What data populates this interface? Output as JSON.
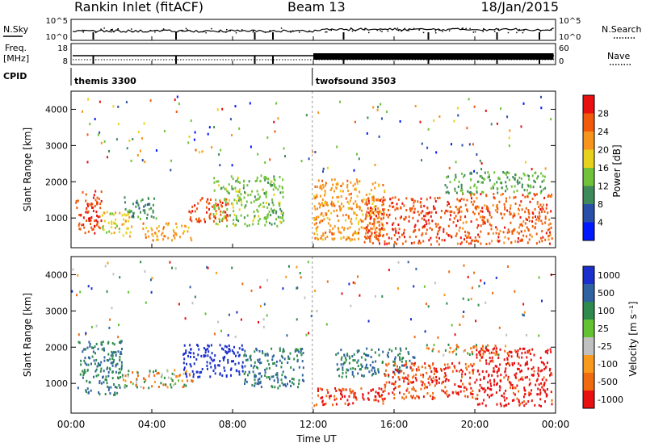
{
  "header": {
    "title": "Rankin Inlet (fitACF)",
    "beam": "Beam 13",
    "date": "18/Jan/2015"
  },
  "status_panel": {
    "left_label": "N.Sky",
    "left_ticks": [
      "10^5",
      "10^0"
    ],
    "right_label": "N.Search",
    "right_ticks": [
      "10^5",
      "10^0"
    ]
  },
  "freq_panel": {
    "label_line1": "Freq.",
    "label_line2": "[MHz]",
    "left_ticks": [
      "18",
      "8"
    ],
    "right_ticks": [
      "60",
      "0"
    ],
    "right_label": "Nave"
  },
  "cpid": {
    "label": "CPID",
    "segments": [
      {
        "name": "themis 3300",
        "start_hour": 0,
        "end_hour": 11.95
      },
      {
        "name": "twofsound 3503",
        "start_hour": 11.95,
        "end_hour": 24
      }
    ]
  },
  "colors": {
    "power": [
      "#0019ff",
      "#2a4fa8",
      "#3f8a5a",
      "#6fc23a",
      "#e6d21a",
      "#f7941d",
      "#f05a0a",
      "#e81010"
    ],
    "velocity": [
      "#1a2fcc",
      "#2f62a0",
      "#2e8a4d",
      "#62c232",
      "#c0c0c0",
      "#f79a1d",
      "#f06a10",
      "#e81010"
    ]
  },
  "chart_data": [
    {
      "type": "heatmap",
      "name": "power-panel",
      "title": "",
      "xlabel": "Time UT",
      "ylabel": "Slant Range [km]",
      "xlim": [
        0,
        24
      ],
      "ylim": [
        180,
        4500
      ],
      "x_ticks": [
        "00:00",
        "04:00",
        "08:00",
        "12:00",
        "16:00",
        "20:00",
        "00:00"
      ],
      "y_ticks": [
        1000,
        2000,
        3000,
        4000
      ],
      "colorbar": {
        "label": "Power [dB]",
        "range": [
          0,
          32
        ],
        "ticks": [
          4,
          8,
          12,
          16,
          20,
          24,
          28
        ]
      },
      "regions": [
        {
          "t0": 0.2,
          "t1": 1.5,
          "r0": 600,
          "r1": 1800,
          "level": 28
        },
        {
          "t0": 1.5,
          "t1": 3.0,
          "r0": 500,
          "r1": 1200,
          "level": 18
        },
        {
          "t0": 2.6,
          "t1": 4.2,
          "r0": 1000,
          "r1": 1600,
          "level": 10
        },
        {
          "t0": 3.5,
          "t1": 6.0,
          "r0": 400,
          "r1": 900,
          "level": 22
        },
        {
          "t0": 5.8,
          "t1": 7.8,
          "r0": 900,
          "r1": 1600,
          "level": 27
        },
        {
          "t0": 7.0,
          "t1": 10.5,
          "r0": 800,
          "r1": 2200,
          "level": 14
        },
        {
          "t0": 12.0,
          "t1": 15.5,
          "r0": 400,
          "r1": 2100,
          "level": 22
        },
        {
          "t0": 14.5,
          "t1": 19.0,
          "r0": 300,
          "r1": 1600,
          "level": 27
        },
        {
          "t0": 19.0,
          "t1": 23.8,
          "r0": 300,
          "r1": 1700,
          "level": 26
        },
        {
          "t0": 18.5,
          "t1": 23.5,
          "r0": 1700,
          "r1": 2300,
          "level": 12
        }
      ]
    },
    {
      "type": "heatmap",
      "name": "velocity-panel",
      "title": "",
      "xlabel": "Time UT",
      "ylabel": "Slant Range [km]",
      "xlim": [
        0,
        24
      ],
      "ylim": [
        180,
        4500
      ],
      "x_ticks": [
        "00:00",
        "04:00",
        "08:00",
        "12:00",
        "16:00",
        "20:00",
        "00:00"
      ],
      "y_ticks": [
        1000,
        2000,
        3000,
        4000
      ],
      "colorbar": {
        "label": "Velocity [m s⁻¹]",
        "range": [
          -1000,
          1000
        ],
        "ticks": [
          "1000",
          "500",
          "100",
          "25",
          "-25",
          "-100",
          "-500",
          "-1000"
        ]
      },
      "regions": [
        {
          "t0": 0.3,
          "t1": 2.5,
          "r0": 700,
          "r1": 2200,
          "level": 250
        },
        {
          "t0": 2.5,
          "t1": 6.0,
          "r0": 900,
          "r1": 1400,
          "level": 0
        },
        {
          "t0": 5.5,
          "t1": 8.5,
          "r0": 1200,
          "r1": 2100,
          "level": 700
        },
        {
          "t0": 8.5,
          "t1": 11.5,
          "r0": 900,
          "r1": 2000,
          "level": 250
        },
        {
          "t0": 12.0,
          "t1": 15.5,
          "r0": 400,
          "r1": 900,
          "level": -400
        },
        {
          "t0": 13.0,
          "t1": 17.0,
          "r0": 1200,
          "r1": 2000,
          "level": 250
        },
        {
          "t0": 15.5,
          "t1": 20.0,
          "r0": 600,
          "r1": 1600,
          "level": -300
        },
        {
          "t0": 17.5,
          "t1": 21.5,
          "r0": 1800,
          "r1": 2100,
          "level": 0
        },
        {
          "t0": 20.0,
          "t1": 23.8,
          "r0": 400,
          "r1": 2000,
          "level": -450
        }
      ]
    }
  ]
}
